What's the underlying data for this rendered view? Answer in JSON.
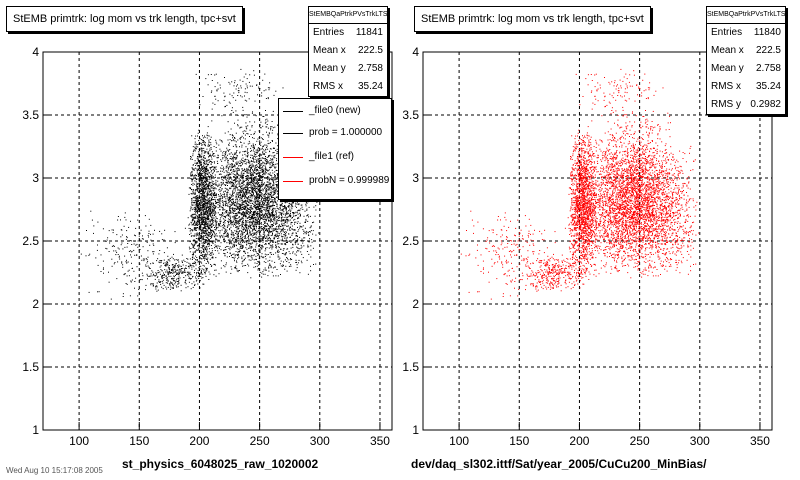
{
  "footer_left_text": "Wed Aug 10 15:17:08 2005",
  "chart_data": [
    {
      "type": "scatter",
      "title": "StEMB primtrk: log mom vs trk length, tpc+svt",
      "histogram_name": "StEMBQaPtrkPVsTrkLTS",
      "xlabel": "st_physics_6048025_raw_1020002",
      "xlim": [
        70,
        360
      ],
      "ylim": [
        1,
        4
      ],
      "xticks": [
        100,
        150,
        200,
        250,
        300,
        350
      ],
      "yticks": [
        1,
        1.5,
        2,
        2.5,
        3,
        3.5,
        4
      ],
      "grid": true,
      "marker_color": "#000000",
      "stats": [
        {
          "label": "Entries",
          "value": "11841"
        },
        {
          "label": "Mean x",
          "value": "222.5"
        },
        {
          "label": "Mean y",
          "value": "2.758"
        },
        {
          "label": "RMS x",
          "value": "35.24"
        }
      ],
      "legend": {
        "placement": "top-right",
        "entries": [
          {
            "label": "_file0 (new)",
            "color": "#000000"
          },
          {
            "label": "prob = 1.000000",
            "color": "#000000"
          },
          {
            "label": "_file1 (ref)",
            "color": "#ff0000"
          },
          {
            "label": "probN = 0.999989",
            "color": "#ff0000"
          }
        ]
      },
      "point_clusters": [
        {
          "x_range": [
            190,
            215
          ],
          "y_range": [
            2.2,
            3.4
          ],
          "count": 1500
        },
        {
          "x_range": [
            195,
            300
          ],
          "y_range": [
            2.2,
            3.3
          ],
          "count": 3200
        },
        {
          "x_range": [
            205,
            280
          ],
          "y_range": [
            2.5,
            3.6
          ],
          "count": 900
        },
        {
          "x_range": [
            150,
            210
          ],
          "y_range": [
            2.1,
            2.4
          ],
          "count": 350
        },
        {
          "x_range": [
            100,
            190
          ],
          "y_range": [
            2.0,
            2.8
          ],
          "count": 220
        },
        {
          "x_range": [
            195,
            270
          ],
          "y_range": [
            3.5,
            3.9
          ],
          "count": 110
        }
      ]
    },
    {
      "type": "scatter",
      "title": "StEMB primtrk: log mom vs trk length, tpc+svt",
      "histogram_name": "StEMBQaPtrkPVsTrkLTS",
      "xlabel": "dev/daq_sl302.ittf/Sat/year_2005/CuCu200_MinBias/",
      "xlim": [
        70,
        360
      ],
      "ylim": [
        1,
        4
      ],
      "xticks": [
        100,
        150,
        200,
        250,
        300,
        350
      ],
      "yticks": [
        1,
        1.5,
        2,
        2.5,
        3,
        3.5,
        4
      ],
      "grid": true,
      "marker_color": "#ff0000",
      "stats": [
        {
          "label": "Entries",
          "value": "11840"
        },
        {
          "label": "Mean x",
          "value": "222.5"
        },
        {
          "label": "Mean y",
          "value": "2.758"
        },
        {
          "label": "RMS x",
          "value": "35.24"
        },
        {
          "label": "RMS y",
          "value": "0.2982"
        }
      ],
      "point_clusters": [
        {
          "x_range": [
            190,
            215
          ],
          "y_range": [
            2.2,
            3.4
          ],
          "count": 1500
        },
        {
          "x_range": [
            195,
            300
          ],
          "y_range": [
            2.2,
            3.3
          ],
          "count": 3200
        },
        {
          "x_range": [
            205,
            280
          ],
          "y_range": [
            2.5,
            3.6
          ],
          "count": 900
        },
        {
          "x_range": [
            150,
            210
          ],
          "y_range": [
            2.1,
            2.4
          ],
          "count": 350
        },
        {
          "x_range": [
            100,
            190
          ],
          "y_range": [
            2.0,
            2.8
          ],
          "count": 220
        },
        {
          "x_range": [
            195,
            270
          ],
          "y_range": [
            3.5,
            3.9
          ],
          "count": 110
        }
      ]
    }
  ]
}
